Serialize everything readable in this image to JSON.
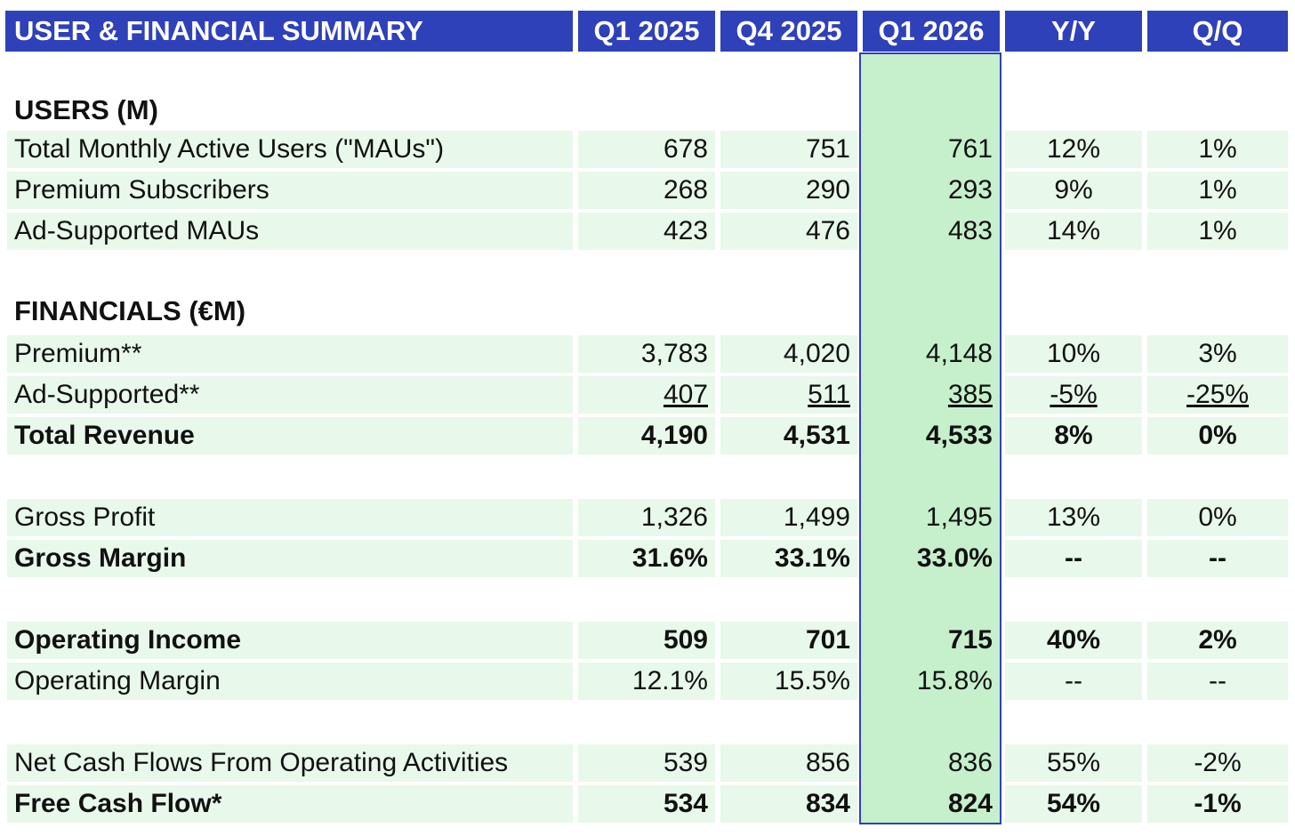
{
  "header": {
    "title": "USER & FINANCIAL SUMMARY",
    "columns": [
      "Q1 2025",
      "Q4 2025",
      "Q1 2026",
      "Y/Y",
      "Q/Q"
    ]
  },
  "sections": {
    "users": "USERS (M)",
    "financials": "FINANCIALS (€M)"
  },
  "rows": [
    {
      "label": "Total Monthly Active Users (\"MAUs\")",
      "values": [
        "678",
        "751",
        "761",
        "12%",
        "1%"
      ]
    },
    {
      "label": "Premium Subscribers",
      "values": [
        "268",
        "290",
        "293",
        "9%",
        "1%"
      ]
    },
    {
      "label": "Ad-Supported MAUs",
      "values": [
        "423",
        "476",
        "483",
        "14%",
        "1%"
      ]
    },
    {
      "label": "Premium**",
      "values": [
        "3,783",
        "4,020",
        "4,148",
        "10%",
        "3%"
      ]
    },
    {
      "label": "Ad-Supported**",
      "values": [
        "407",
        "511",
        "385",
        "-5%",
        "-25%"
      ]
    },
    {
      "label": "Total Revenue",
      "values": [
        "4,190",
        "4,531",
        "4,533",
        "8%",
        "0%"
      ]
    },
    {
      "label": "Gross Profit",
      "values": [
        "1,326",
        "1,499",
        "1,495",
        "13%",
        "0%"
      ]
    },
    {
      "label": "Gross Margin",
      "values": [
        "31.6%",
        "33.1%",
        "33.0%",
        "--",
        "--"
      ]
    },
    {
      "label": "Operating Income",
      "values": [
        "509",
        "701",
        "715",
        "40%",
        "2%"
      ]
    },
    {
      "label": "Operating Margin",
      "values": [
        "12.1%",
        "15.5%",
        "15.8%",
        "--",
        "--"
      ]
    },
    {
      "label": "Net Cash Flows From Operating Activities",
      "values": [
        "539",
        "856",
        "836",
        "55%",
        "-2%"
      ]
    },
    {
      "label": "Free Cash Flow*",
      "values": [
        "534",
        "834",
        "824",
        "54%",
        "-1%"
      ]
    }
  ],
  "colors": {
    "header_bg": "#2e41b8",
    "row_bg": "#e8f8ea",
    "highlight_bg": "#c6efcc"
  }
}
